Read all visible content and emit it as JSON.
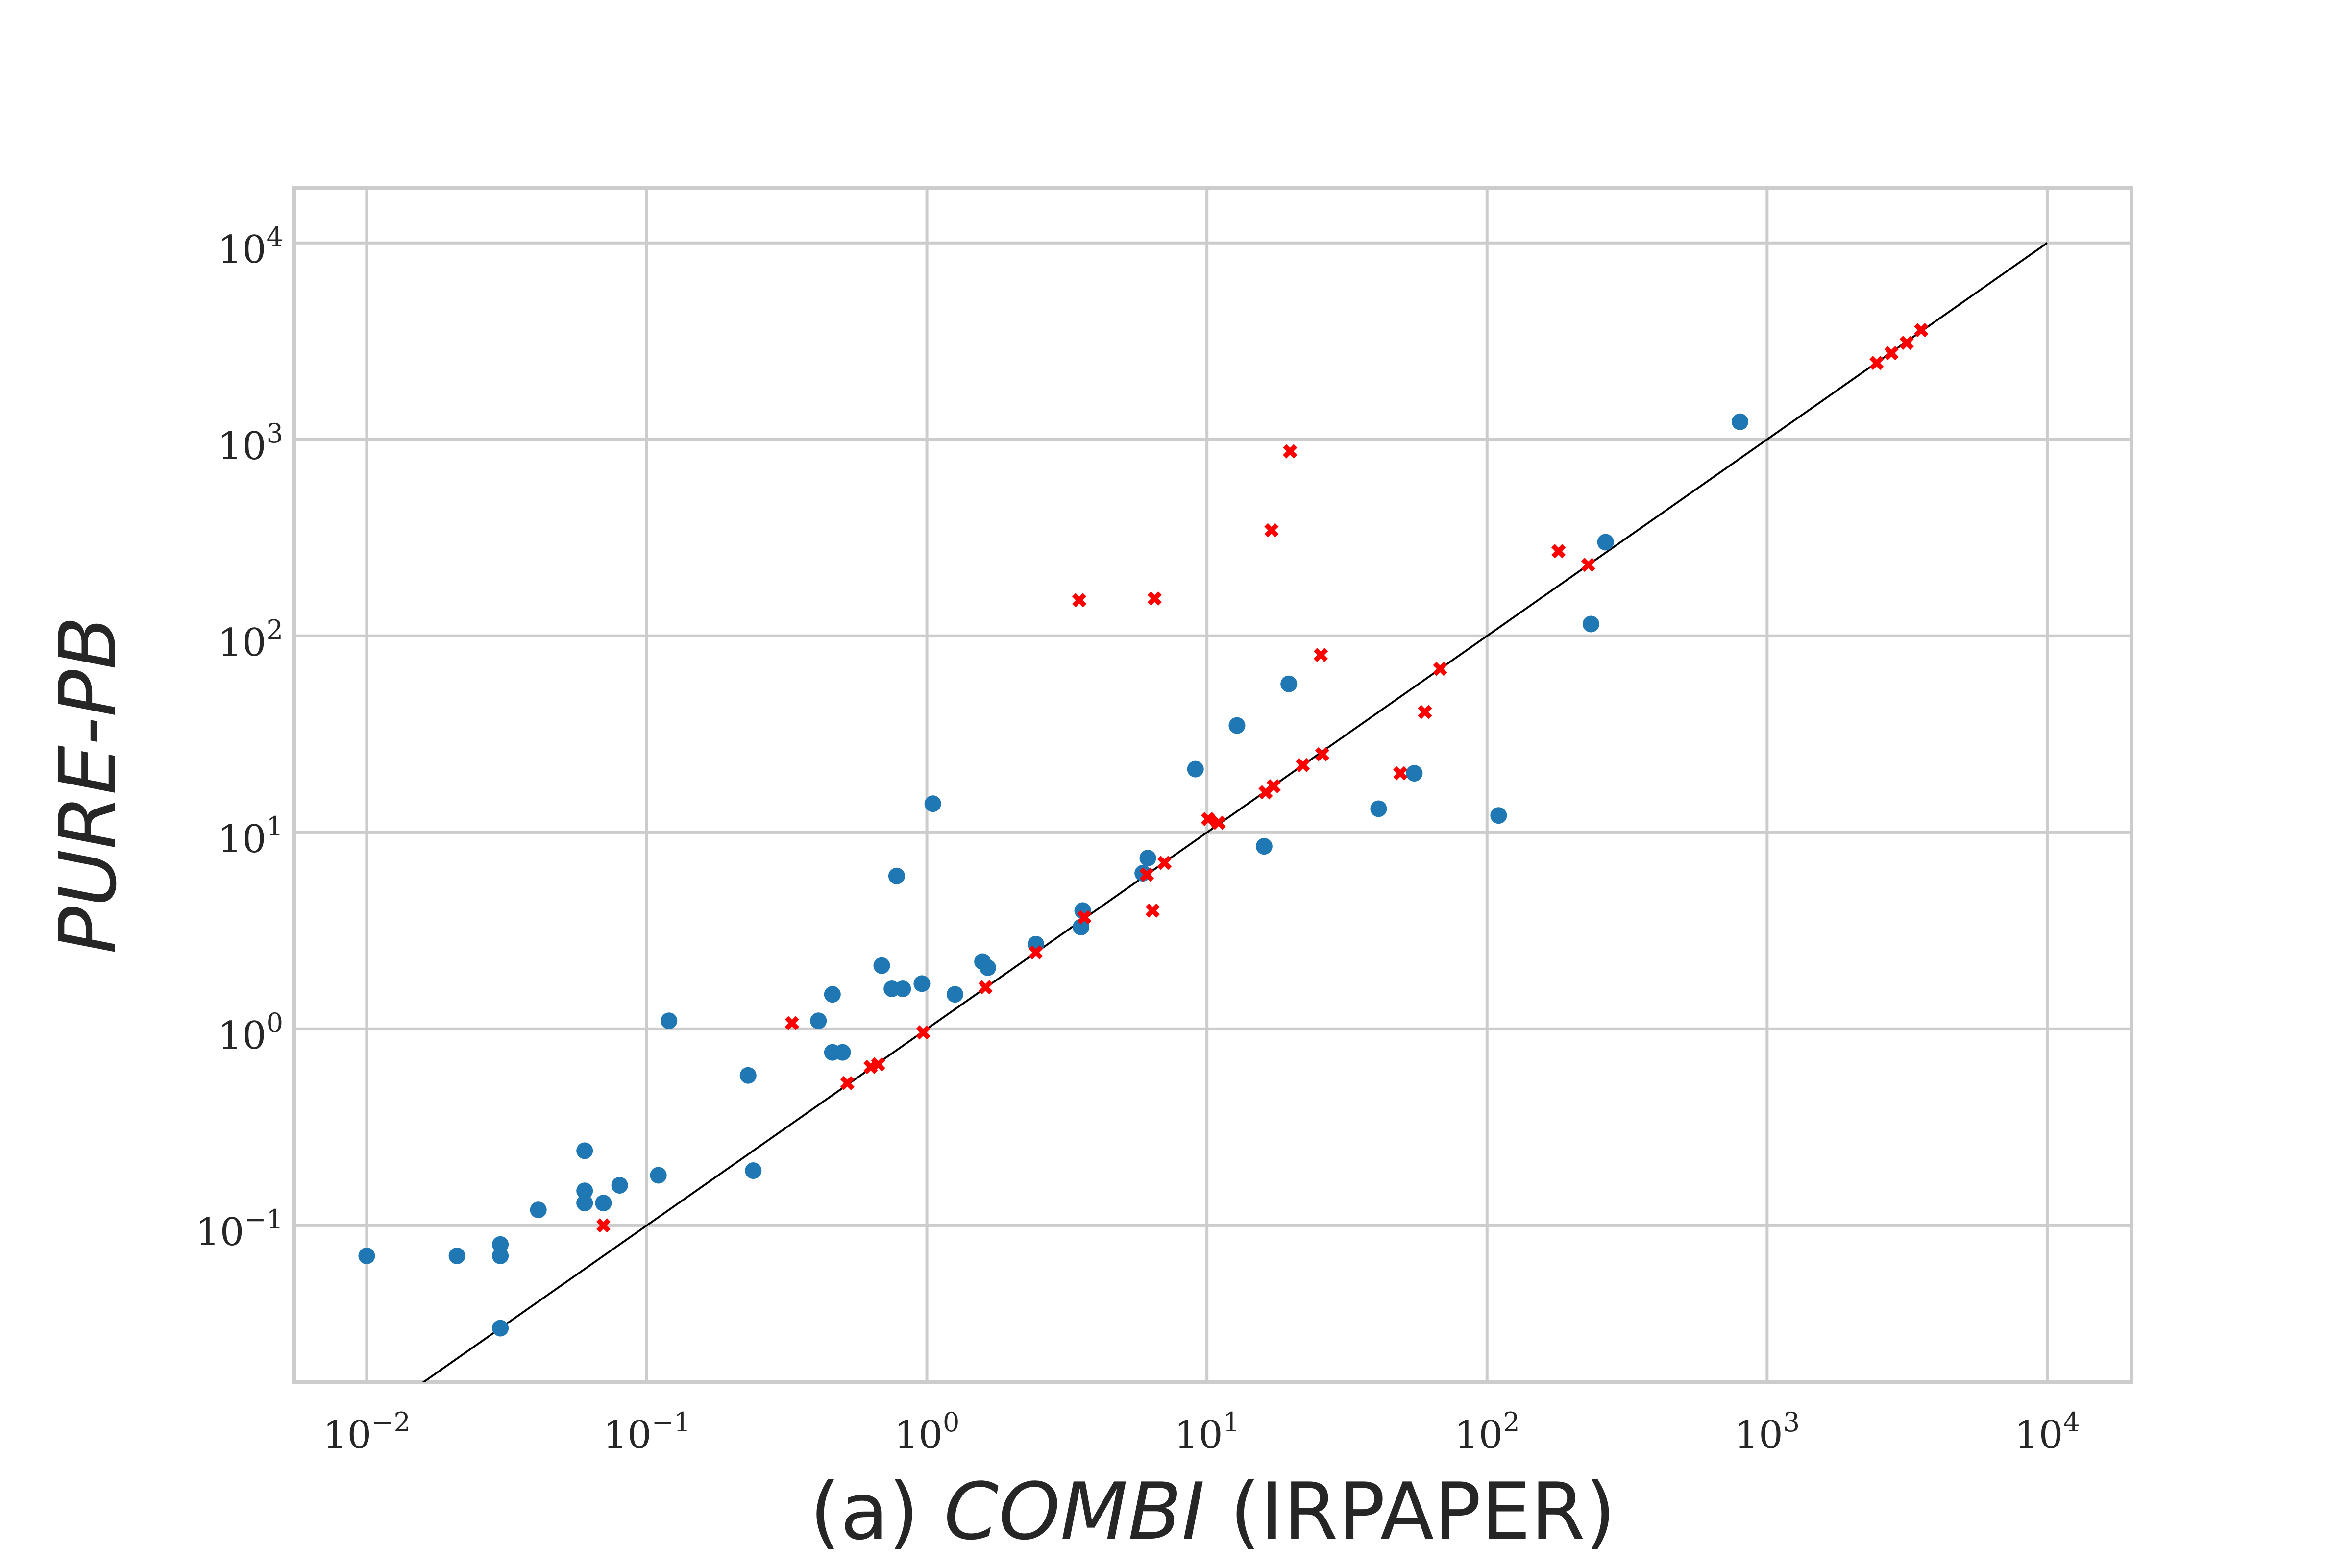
{
  "chart_data": {
    "type": "scatter",
    "title": "",
    "xlabel_parts": [
      {
        "text": "(a) ",
        "italic": false
      },
      {
        "text": "COMBI",
        "italic": true
      },
      {
        "text": " (IRPAPER)",
        "italic": false
      }
    ],
    "ylabel": "PURE-PB",
    "xscale": "log",
    "yscale": "log",
    "xlim": [
      0.0055,
      20000
    ],
    "ylim": [
      0.016,
      19000
    ],
    "grid": true,
    "x_ticks": [
      {
        "base": "10",
        "exp": "−2",
        "value": 0.01
      },
      {
        "base": "10",
        "exp": "−1",
        "value": 0.1
      },
      {
        "base": "10",
        "exp": "0",
        "value": 1
      },
      {
        "base": "10",
        "exp": "1",
        "value": 10
      },
      {
        "base": "10",
        "exp": "2",
        "value": 100
      },
      {
        "base": "10",
        "exp": "3",
        "value": 1000
      },
      {
        "base": "10",
        "exp": "4",
        "value": 10000
      }
    ],
    "y_ticks": [
      {
        "base": "10",
        "exp": "−1",
        "value": 0.1
      },
      {
        "base": "10",
        "exp": "0",
        "value": 1
      },
      {
        "base": "10",
        "exp": "1",
        "value": 10
      },
      {
        "base": "10",
        "exp": "2",
        "value": 100
      },
      {
        "base": "10",
        "exp": "3",
        "value": 1000
      },
      {
        "base": "10",
        "exp": "4",
        "value": 10000
      }
    ],
    "reference_line": {
      "from": [
        0.01,
        0.01
      ],
      "to": [
        10000,
        10000
      ],
      "color": "#000000"
    },
    "series": [
      {
        "marker": "circle",
        "color": "#1f77b4",
        "points": [
          [
            0.01,
            0.07
          ],
          [
            0.021,
            0.07
          ],
          [
            0.03,
            0.08
          ],
          [
            0.03,
            0.07
          ],
          [
            0.03,
            0.03
          ],
          [
            0.041,
            0.12
          ],
          [
            0.06,
            0.24
          ],
          [
            0.06,
            0.15
          ],
          [
            0.06,
            0.13
          ],
          [
            0.07,
            0.13
          ],
          [
            0.08,
            0.16
          ],
          [
            0.11,
            0.18
          ],
          [
            0.12,
            1.1
          ],
          [
            0.23,
            0.58
          ],
          [
            0.24,
            0.19
          ],
          [
            0.41,
            1.1
          ],
          [
            0.46,
            1.5
          ],
          [
            0.46,
            0.76
          ],
          [
            0.5,
            0.76
          ],
          [
            0.69,
            2.1
          ],
          [
            0.75,
            1.6
          ],
          [
            0.78,
            6.0
          ],
          [
            0.82,
            1.6
          ],
          [
            0.96,
            1.7
          ],
          [
            1.05,
            14.0
          ],
          [
            1.26,
            1.5
          ],
          [
            1.58,
            2.2
          ],
          [
            1.65,
            2.05
          ],
          [
            2.45,
            2.7
          ],
          [
            3.55,
            3.3
          ],
          [
            3.6,
            4.0
          ],
          [
            5.9,
            6.2
          ],
          [
            6.15,
            7.4
          ],
          [
            9.1,
            21.0
          ],
          [
            12.8,
            35.0
          ],
          [
            16.0,
            8.5
          ],
          [
            19.6,
            57.0
          ],
          [
            41.0,
            13.2
          ],
          [
            55.0,
            20.0
          ],
          [
            110.0,
            12.2
          ],
          [
            235.0,
            115.0
          ],
          [
            265.0,
            300.0
          ],
          [
            800.0,
            1230.0
          ]
        ]
      },
      {
        "marker": "x",
        "color": "#ff0000",
        "points": [
          [
            0.07,
            0.1
          ],
          [
            0.33,
            1.07
          ],
          [
            0.52,
            0.53
          ],
          [
            0.63,
            0.64
          ],
          [
            0.67,
            0.66
          ],
          [
            0.97,
            0.96
          ],
          [
            1.62,
            1.63
          ],
          [
            2.45,
            2.45
          ],
          [
            3.5,
            152.0
          ],
          [
            3.65,
            3.7
          ],
          [
            6.1,
            6.1
          ],
          [
            6.4,
            4.0
          ],
          [
            6.5,
            155.0
          ],
          [
            7.05,
            7.0
          ],
          [
            10.1,
            11.7
          ],
          [
            11.0,
            11.2
          ],
          [
            16.2,
            16.0
          ],
          [
            17.0,
            345.0
          ],
          [
            17.3,
            17.2
          ],
          [
            19.8,
            870.0
          ],
          [
            22.0,
            22.0
          ],
          [
            25.5,
            80.0
          ],
          [
            25.8,
            25.0
          ],
          [
            49.0,
            20.0
          ],
          [
            60.0,
            41.0
          ],
          [
            68.0,
            68.0
          ],
          [
            180.0,
            270.0
          ],
          [
            230.0,
            230.0
          ],
          [
            2460.0,
            2450.0
          ],
          [
            2780.0,
            2750.0
          ],
          [
            3150.0,
            3100.0
          ],
          [
            3550.0,
            3600.0
          ]
        ]
      }
    ]
  }
}
